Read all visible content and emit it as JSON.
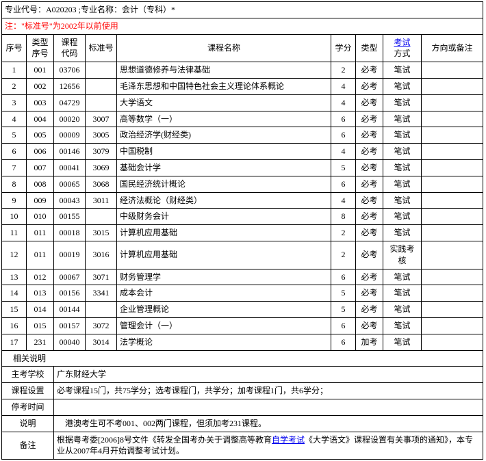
{
  "header": {
    "major_line": "专业代号：A020203 ;专业名称：会计（专科）*",
    "note_line": "注：\"标准号\"为2002年以前使用"
  },
  "columns": {
    "seq": "序号",
    "type_seq": "类型\n序号",
    "course_code": "课程\n代码",
    "std_no": "标准号",
    "course_name": "课程名称",
    "credit": "学分",
    "type": "类型",
    "exam_method": "考试方式",
    "exam_method_label1": "考试",
    "exam_method_label2": "方式",
    "note": "方向或备注"
  },
  "rows": [
    {
      "seq": "1",
      "type_seq": "001",
      "course_code": "03706",
      "std_no": "",
      "course_name": "思想道德修养与法律基础",
      "credit": "2",
      "type": "必考",
      "exam_method": "笔试",
      "note": ""
    },
    {
      "seq": "2",
      "type_seq": "002",
      "course_code": "12656",
      "std_no": "",
      "course_name": "毛泽东思想和中国特色社会主义理论体系概论",
      "credit": "4",
      "type": "必考",
      "exam_method": "笔试",
      "note": ""
    },
    {
      "seq": "3",
      "type_seq": "003",
      "course_code": "04729",
      "std_no": "",
      "course_name": "大学语文",
      "credit": "4",
      "type": "必考",
      "exam_method": "笔试",
      "note": ""
    },
    {
      "seq": "4",
      "type_seq": "004",
      "course_code": "00020",
      "std_no": "3007",
      "course_name": "高等数学（一）",
      "credit": "6",
      "type": "必考",
      "exam_method": "笔试",
      "note": ""
    },
    {
      "seq": "5",
      "type_seq": "005",
      "course_code": "00009",
      "std_no": "3005",
      "course_name": "政治经济学(财经类)",
      "credit": "6",
      "type": "必考",
      "exam_method": "笔试",
      "note": ""
    },
    {
      "seq": "6",
      "type_seq": "006",
      "course_code": "00146",
      "std_no": "3079",
      "course_name": "中国税制",
      "credit": "4",
      "type": "必考",
      "exam_method": "笔试",
      "note": ""
    },
    {
      "seq": "7",
      "type_seq": "007",
      "course_code": "00041",
      "std_no": "3069",
      "course_name": "基础会计学",
      "credit": "5",
      "type": "必考",
      "exam_method": "笔试",
      "note": ""
    },
    {
      "seq": "8",
      "type_seq": "008",
      "course_code": "00065",
      "std_no": "3068",
      "course_name": "国民经济统计概论",
      "credit": "6",
      "type": "必考",
      "exam_method": "笔试",
      "note": ""
    },
    {
      "seq": "9",
      "type_seq": "009",
      "course_code": "00043",
      "std_no": "3011",
      "course_name": "经济法概论（财经类）",
      "credit": "4",
      "type": "必考",
      "exam_method": "笔试",
      "note": ""
    },
    {
      "seq": "10",
      "type_seq": "010",
      "course_code": "00155",
      "std_no": "",
      "course_name": "中级财务会计",
      "credit": "8",
      "type": "必考",
      "exam_method": "笔试",
      "note": ""
    },
    {
      "seq": "11",
      "type_seq": "011",
      "course_code": "00018",
      "std_no": "3015",
      "course_name": "计算机应用基础",
      "credit": "2",
      "type": "必考",
      "exam_method": "笔试",
      "note": ""
    },
    {
      "seq": "12",
      "type_seq": "011",
      "course_code": "00019",
      "std_no": "3016",
      "course_name": "计算机应用基础",
      "credit": "2",
      "type": "必考",
      "exam_method": "实践考核",
      "note": ""
    },
    {
      "seq": "13",
      "type_seq": "012",
      "course_code": "00067",
      "std_no": "3071",
      "course_name": "财务管理学",
      "credit": "6",
      "type": "必考",
      "exam_method": "笔试",
      "note": ""
    },
    {
      "seq": "14",
      "type_seq": "013",
      "course_code": "00156",
      "std_no": "3341",
      "course_name": "成本会计",
      "credit": "5",
      "type": "必考",
      "exam_method": "笔试",
      "note": ""
    },
    {
      "seq": "15",
      "type_seq": "014",
      "course_code": "00144",
      "std_no": "",
      "course_name": "企业管理概论",
      "credit": "5",
      "type": "必考",
      "exam_method": "笔试",
      "note": ""
    },
    {
      "seq": "16",
      "type_seq": "015",
      "course_code": "00157",
      "std_no": "3072",
      "course_name": "管理会计（一）",
      "credit": "6",
      "type": "必考",
      "exam_method": "笔试",
      "note": ""
    },
    {
      "seq": "17",
      "type_seq": "231",
      "course_code": "00040",
      "std_no": "3014",
      "course_name": "法学概论",
      "credit": "6",
      "type": "加考",
      "exam_method": "笔试",
      "note": ""
    }
  ],
  "sections": {
    "related_label": "相关说明",
    "school_label": "主考学校",
    "school_value": "广东财经大学",
    "setup_label": "课程设置",
    "setup_value": "必考课程15门，共75学分；选考课程门，共学分；加考课程1门，共6学分；",
    "stop_label": "停考时间",
    "stop_value": "",
    "explain_label": "说明",
    "explain_value": "港澳考生可不考001、002两门课程，但须加考231课程。",
    "remark_label": "备注",
    "remark_prefix": "根据粤考委[2006]8号文件《转发全国考办关于调整高等教育",
    "remark_link": "自学考试",
    "remark_suffix": "《大学语文》课程设置有关事项的通知》，本专业从2007年4月开始调整考试计划。"
  }
}
